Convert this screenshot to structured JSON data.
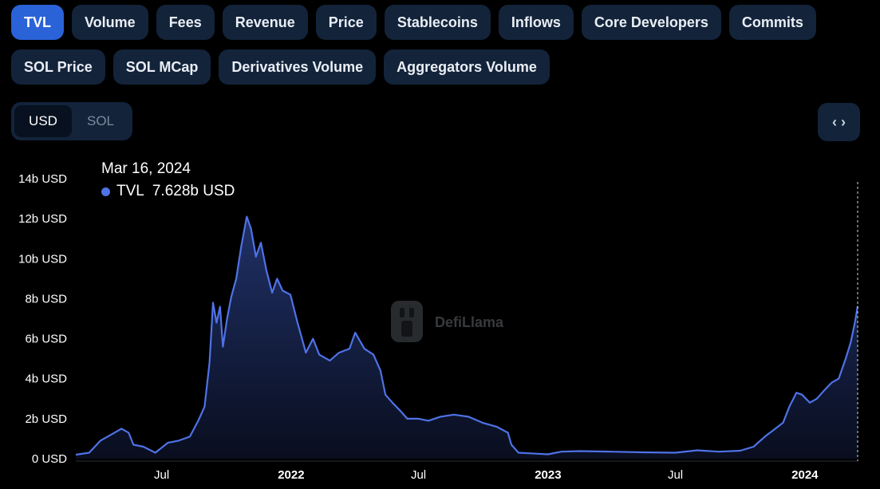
{
  "metric_tabs": [
    "TVL",
    "Volume",
    "Fees",
    "Revenue",
    "Price",
    "Stablecoins",
    "Inflows",
    "Core Developers",
    "Commits",
    "SOL Price",
    "SOL MCap",
    "Derivatives Volume",
    "Aggregators Volume"
  ],
  "active_tab": "TVL",
  "currency_toggle": {
    "options": [
      "USD",
      "SOL"
    ],
    "selected": "USD"
  },
  "embed_button": {
    "icon": "code-brackets-icon",
    "glyph": "‹ ›"
  },
  "tooltip": {
    "date": "Mar 16, 2024",
    "series": "TVL",
    "value": "7.628b USD"
  },
  "watermark": {
    "text": "DefiLlama",
    "icon": "llama-logo-icon"
  },
  "colors": {
    "line": "#4f72e6",
    "active_tab": "#2a62d8",
    "tab_bg": "#13233a",
    "background": "#000000"
  },
  "chart_data": {
    "type": "area",
    "series": [
      {
        "name": "TVL"
      }
    ],
    "ylim": [
      0,
      14
    ],
    "y_unit": "b USD",
    "y_ticks": [
      0,
      2,
      4,
      6,
      8,
      10,
      12,
      14
    ],
    "y_tick_labels": [
      "0 USD",
      "2b USD",
      "4b USD",
      "6b USD",
      "8b USD",
      "10b USD",
      "12b USD",
      "14b USD"
    ],
    "xlim": [
      "2021-03-01",
      "2024-03-16"
    ],
    "x_ticks": [
      "2021-07-01",
      "2022-01-01",
      "2022-07-01",
      "2023-01-01",
      "2023-07-01",
      "2024-01-01"
    ],
    "x_tick_labels": [
      "Jul",
      "2022",
      "Jul",
      "2023",
      "Jul",
      "2024"
    ],
    "x_tick_bold": [
      false,
      true,
      false,
      true,
      false,
      true
    ],
    "grid": false,
    "hover_date": "2024-03-16",
    "points": [
      [
        "2021-03-01",
        0.2
      ],
      [
        "2021-03-20",
        0.3
      ],
      [
        "2021-04-05",
        0.9
      ],
      [
        "2021-04-20",
        1.2
      ],
      [
        "2021-05-05",
        1.5
      ],
      [
        "2021-05-15",
        1.3
      ],
      [
        "2021-05-22",
        0.7
      ],
      [
        "2021-06-05",
        0.6
      ],
      [
        "2021-06-22",
        0.3
      ],
      [
        "2021-07-10",
        0.8
      ],
      [
        "2021-07-25",
        0.9
      ],
      [
        "2021-08-10",
        1.1
      ],
      [
        "2021-08-22",
        1.9
      ],
      [
        "2021-08-31",
        2.6
      ],
      [
        "2021-09-07",
        4.8
      ],
      [
        "2021-09-12",
        7.8
      ],
      [
        "2021-09-17",
        6.8
      ],
      [
        "2021-09-22",
        7.6
      ],
      [
        "2021-09-26",
        5.6
      ],
      [
        "2021-10-02",
        7.0
      ],
      [
        "2021-10-08",
        8.1
      ],
      [
        "2021-10-15",
        9.0
      ],
      [
        "2021-10-22",
        10.6
      ],
      [
        "2021-10-30",
        12.1
      ],
      [
        "2021-11-05",
        11.5
      ],
      [
        "2021-11-12",
        10.1
      ],
      [
        "2021-11-19",
        10.8
      ],
      [
        "2021-11-27",
        9.4
      ],
      [
        "2021-12-05",
        8.3
      ],
      [
        "2021-12-12",
        9.0
      ],
      [
        "2021-12-20",
        8.4
      ],
      [
        "2021-12-31",
        8.2
      ],
      [
        "2022-01-10",
        6.8
      ],
      [
        "2022-01-22",
        5.3
      ],
      [
        "2022-02-01",
        6.0
      ],
      [
        "2022-02-10",
        5.2
      ],
      [
        "2022-02-25",
        4.9
      ],
      [
        "2022-03-10",
        5.3
      ],
      [
        "2022-03-25",
        5.5
      ],
      [
        "2022-04-02",
        6.3
      ],
      [
        "2022-04-15",
        5.5
      ],
      [
        "2022-04-28",
        5.2
      ],
      [
        "2022-05-08",
        4.4
      ],
      [
        "2022-05-15",
        3.2
      ],
      [
        "2022-05-25",
        2.8
      ],
      [
        "2022-06-05",
        2.4
      ],
      [
        "2022-06-15",
        2.0
      ],
      [
        "2022-07-01",
        2.0
      ],
      [
        "2022-07-15",
        1.9
      ],
      [
        "2022-08-01",
        2.1
      ],
      [
        "2022-08-20",
        2.2
      ],
      [
        "2022-09-10",
        2.1
      ],
      [
        "2022-09-30",
        1.8
      ],
      [
        "2022-10-20",
        1.6
      ],
      [
        "2022-11-05",
        1.3
      ],
      [
        "2022-11-10",
        0.7
      ],
      [
        "2022-11-20",
        0.3
      ],
      [
        "2022-12-15",
        0.25
      ],
      [
        "2023-01-01",
        0.22
      ],
      [
        "2023-01-20",
        0.35
      ],
      [
        "2023-02-15",
        0.38
      ],
      [
        "2023-04-01",
        0.35
      ],
      [
        "2023-05-15",
        0.32
      ],
      [
        "2023-07-01",
        0.3
      ],
      [
        "2023-08-01",
        0.42
      ],
      [
        "2023-09-01",
        0.35
      ],
      [
        "2023-10-01",
        0.4
      ],
      [
        "2023-10-20",
        0.6
      ],
      [
        "2023-11-05",
        1.1
      ],
      [
        "2023-11-20",
        1.5
      ],
      [
        "2023-12-01",
        1.8
      ],
      [
        "2023-12-10",
        2.6
      ],
      [
        "2023-12-20",
        3.3
      ],
      [
        "2023-12-28",
        3.2
      ],
      [
        "2024-01-08",
        2.8
      ],
      [
        "2024-01-18",
        3.0
      ],
      [
        "2024-01-28",
        3.4
      ],
      [
        "2024-02-08",
        3.8
      ],
      [
        "2024-02-18",
        4.0
      ],
      [
        "2024-02-28",
        5.0
      ],
      [
        "2024-03-06",
        5.8
      ],
      [
        "2024-03-12",
        6.8
      ],
      [
        "2024-03-16",
        7.628
      ]
    ]
  }
}
